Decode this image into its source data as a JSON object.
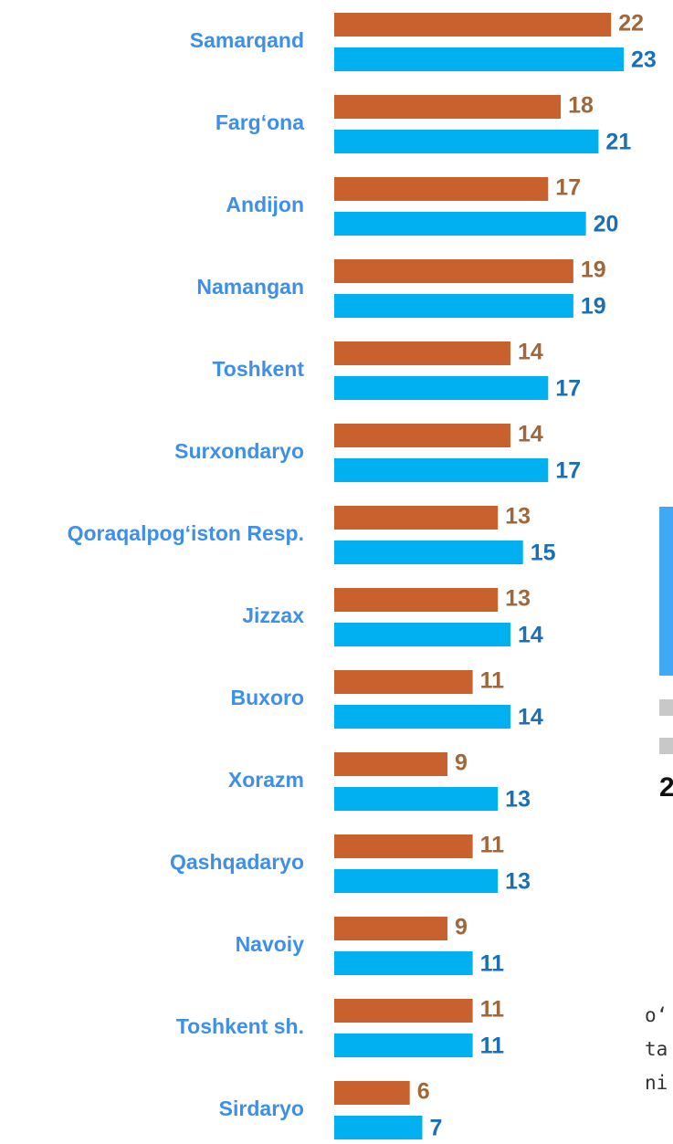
{
  "chart_data": {
    "type": "barh",
    "categories": [
      "Samarqand",
      "Farg‘ona",
      "Andijon",
      "Namangan",
      "Toshkent",
      "Surxondaryo",
      "Qoraqalpog‘iston Resp.",
      "Jizzax",
      "Buxoro",
      "Xorazm",
      "Qashqadaryo",
      "Navoiy",
      "Toshkent sh.",
      "Sirdaryo"
    ],
    "series": [
      {
        "color": "#c8612e",
        "label_color": "#a0673a",
        "values": [
          22,
          18,
          17,
          19,
          14,
          14,
          13,
          13,
          11,
          9,
          11,
          9,
          11,
          6
        ]
      },
      {
        "color": "#00b0f0",
        "label_color": "#1a6fb5",
        "values": [
          23,
          21,
          20,
          19,
          17,
          17,
          15,
          14,
          14,
          13,
          13,
          11,
          11,
          7
        ]
      }
    ],
    "xlim": [
      0,
      23
    ]
  },
  "cropped_texts": [
    "2",
    "o‘",
    "ta",
    "ni"
  ]
}
